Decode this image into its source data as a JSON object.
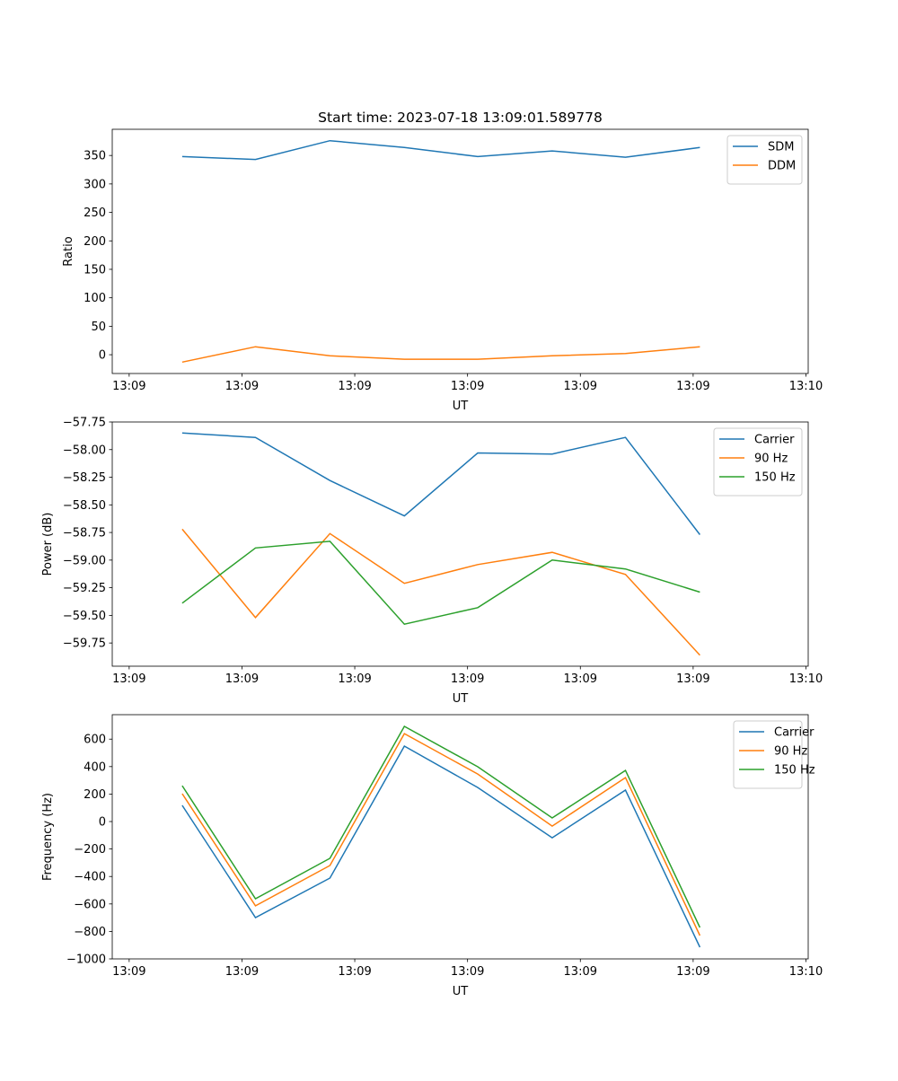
{
  "chart_data": [
    {
      "type": "line",
      "title": "Start time: 2023-07-18 13:09:01.589778",
      "xlabel": "UT",
      "ylabel": "Ratio",
      "x_seconds_after_13_09_00": [
        4.7,
        11.2,
        17.8,
        24.4,
        30.9,
        37.5,
        44.0,
        50.6
      ],
      "xlim": [
        -1.5,
        60.2
      ],
      "x_ticks": [
        0,
        10,
        20,
        30,
        40,
        50,
        60
      ],
      "x_tick_labels": [
        "13:09",
        "13:09",
        "13:09",
        "13:09",
        "13:09",
        "13:09",
        "13:10"
      ],
      "ylim": [
        -33,
        396
      ],
      "y_ticks": [
        0,
        50,
        100,
        150,
        200,
        250,
        300,
        350
      ],
      "y_tick_labels": [
        "0",
        "50",
        "100",
        "150",
        "200",
        "250",
        "300",
        "350"
      ],
      "legend_position": "top-right",
      "series": [
        {
          "name": "SDM",
          "color": "#1f77b4",
          "values": [
            348,
            343,
            376,
            364,
            348,
            358,
            347,
            364
          ]
        },
        {
          "name": "DDM",
          "color": "#ff7f0e",
          "values": [
            -13,
            14,
            -2,
            -8,
            -8,
            -2,
            2,
            14
          ]
        }
      ]
    },
    {
      "type": "line",
      "title": "",
      "xlabel": "UT",
      "ylabel": "Power (dB)",
      "x_seconds_after_13_09_00": [
        4.7,
        11.2,
        17.8,
        24.4,
        30.9,
        37.5,
        44.0,
        50.6
      ],
      "xlim": [
        -1.5,
        60.2
      ],
      "x_ticks": [
        0,
        10,
        20,
        30,
        40,
        50,
        60
      ],
      "x_tick_labels": [
        "13:09",
        "13:09",
        "13:09",
        "13:09",
        "13:09",
        "13:09",
        "13:10"
      ],
      "ylim": [
        -59.96,
        -57.75
      ],
      "y_ticks": [
        -57.75,
        -58.0,
        -58.25,
        -58.5,
        -58.75,
        -59.0,
        -59.25,
        -59.5,
        -59.75
      ],
      "y_tick_labels": [
        "−57.75",
        "−58.00",
        "−58.25",
        "−58.50",
        "−58.75",
        "−59.00",
        "−59.25",
        "−59.50",
        "−59.75"
      ],
      "legend_position": "top-right",
      "series": [
        {
          "name": "Carrier",
          "color": "#1f77b4",
          "values": [
            -57.85,
            -57.89,
            -58.28,
            -58.6,
            -58.03,
            -58.04,
            -57.89,
            -58.77
          ]
        },
        {
          "name": "90 Hz",
          "color": "#ff7f0e",
          "values": [
            -58.72,
            -59.52,
            -58.76,
            -59.21,
            -59.04,
            -58.93,
            -59.13,
            -59.86
          ]
        },
        {
          "name": "150 Hz",
          "color": "#2ca02c",
          "values": [
            -59.39,
            -58.89,
            -58.83,
            -59.58,
            -59.43,
            -59.0,
            -59.08,
            -59.29
          ]
        }
      ]
    },
    {
      "type": "line",
      "title": "",
      "xlabel": "UT",
      "ylabel": "Frequency (Hz)",
      "x_seconds_after_13_09_00": [
        4.7,
        11.2,
        17.8,
        24.4,
        30.9,
        37.5,
        44.0,
        50.6
      ],
      "xlim": [
        -1.5,
        60.2
      ],
      "x_ticks": [
        0,
        10,
        20,
        30,
        40,
        50,
        60
      ],
      "x_tick_labels": [
        "13:09",
        "13:09",
        "13:09",
        "13:09",
        "13:09",
        "13:09",
        "13:10"
      ],
      "ylim": [
        -1000,
        778
      ],
      "y_ticks": [
        -1000,
        -800,
        -600,
        -400,
        -200,
        0,
        200,
        400,
        600
      ],
      "y_tick_labels": [
        "−1000",
        "−800",
        "−600",
        "−400",
        "−200",
        "0",
        "200",
        "400",
        "600"
      ],
      "legend_position": "top-right",
      "series": [
        {
          "name": "Carrier",
          "color": "#1f77b4",
          "values": [
            118,
            -699,
            -412,
            549,
            248,
            -118,
            229,
            -915
          ]
        },
        {
          "name": "90 Hz",
          "color": "#ff7f0e",
          "values": [
            203,
            -614,
            -320,
            640,
            346,
            -33,
            320,
            -830
          ]
        },
        {
          "name": "150 Hz",
          "color": "#2ca02c",
          "values": [
            261,
            -562,
            -268,
            693,
            399,
            26,
            372,
            -771
          ]
        }
      ]
    }
  ]
}
